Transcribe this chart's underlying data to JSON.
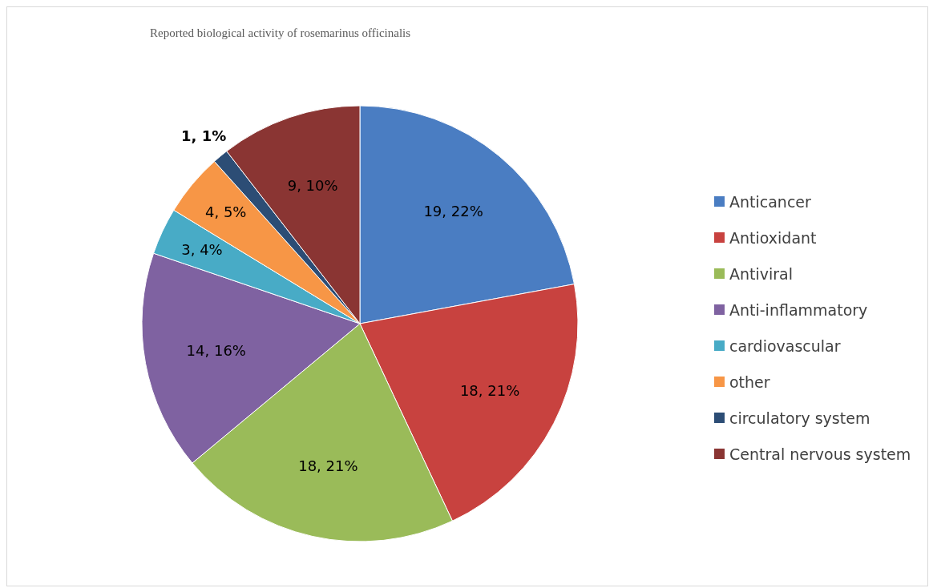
{
  "chart_data": {
    "type": "pie",
    "title": "Reported biological activity of rosemarinus officinalis",
    "categories": [
      "Anticancer",
      "Antioxidant",
      "Antiviral",
      "Anti-inflammatory",
      "cardiovascular",
      "other",
      "circulatory system",
      "Central nervous system"
    ],
    "values": [
      19,
      18,
      18,
      14,
      3,
      4,
      1,
      9
    ],
    "colors": [
      "#4a7dc2",
      "#c8423f",
      "#9abb59",
      "#7f62a1",
      "#48abc6",
      "#f79646",
      "#2c4d75",
      "#8a3533"
    ],
    "value_labels": [
      "19, 22%",
      "18, 21%",
      "18, 21%",
      "14, 16%",
      "3, 4%",
      "4, 5%",
      "1, 1%",
      "9, 10%"
    ],
    "legend": "right"
  }
}
